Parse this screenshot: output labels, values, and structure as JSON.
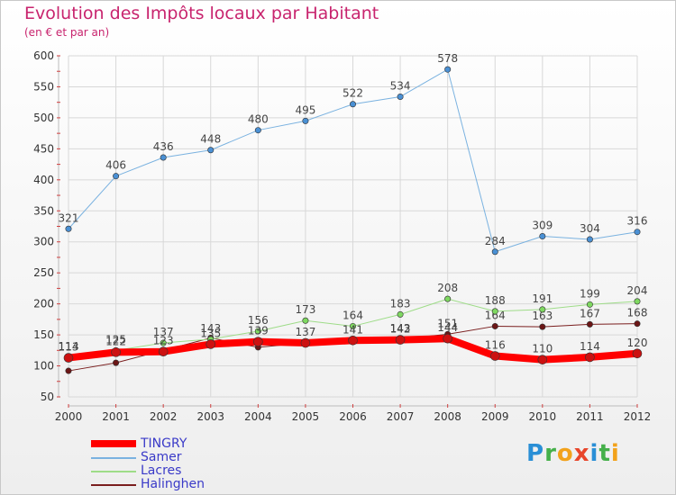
{
  "header": {
    "title": "Evolution des Impôts locaux par Habitant",
    "subtitle": "(en € et par an)"
  },
  "logo": {
    "letters": [
      "P",
      "r",
      "o",
      "x",
      "i",
      "t",
      "i"
    ]
  },
  "chart_data": {
    "type": "line",
    "title": "Evolution des Impôts locaux par Habitant",
    "subtitle": "(en € et par an)",
    "xlabel": "",
    "ylabel": "",
    "ylim": [
      50,
      600
    ],
    "yticks": [
      50,
      100,
      150,
      200,
      250,
      300,
      350,
      400,
      450,
      500,
      550,
      600
    ],
    "x": [
      "2000",
      "2001",
      "2002",
      "2003",
      "2004",
      "2005",
      "2006",
      "2007",
      "2008",
      "2009",
      "2010",
      "2011",
      "2012"
    ],
    "grid": true,
    "legend_position": "bottom-left",
    "series": [
      {
        "name": "Halinghen",
        "color": "#7a1e1e",
        "width": 1,
        "marker": "#6b1616",
        "values": [
          92,
          105,
          125,
          145,
          130,
          137,
          140,
          143,
          151,
          164,
          163,
          167,
          168
        ],
        "label_values": [
          null,
          null,
          null,
          null,
          null,
          null,
          null,
          143,
          151,
          164,
          163,
          167,
          168
        ]
      },
      {
        "name": "Lacres",
        "color": "#9edc88",
        "width": 1,
        "marker": "#7ed860",
        "values": [
          114,
          125,
          137,
          143,
          156,
          173,
          164,
          183,
          208,
          188,
          191,
          199,
          204
        ],
        "label_values": [
          114,
          125,
          137,
          143,
          156,
          173,
          164,
          183,
          208,
          188,
          191,
          199,
          204
        ]
      },
      {
        "name": "Samer",
        "color": "#7ab2e0",
        "width": 1,
        "marker": "#4a90d4",
        "values": [
          321,
          406,
          436,
          448,
          480,
          495,
          522,
          534,
          578,
          284,
          309,
          304,
          316
        ],
        "label_values": [
          321,
          406,
          436,
          448,
          480,
          495,
          522,
          534,
          578,
          284,
          309,
          304,
          316
        ]
      },
      {
        "name": "TINGRY",
        "color": "#ff0000",
        "width": 8,
        "marker": "#cc1111",
        "values": [
          113,
          122,
          123,
          135,
          139,
          137,
          141,
          142,
          144,
          116,
          110,
          114,
          120
        ],
        "label_values": [
          113,
          122,
          123,
          135,
          139,
          137,
          141,
          142,
          144,
          116,
          110,
          114,
          120
        ]
      }
    ],
    "legend_order": [
      "TINGRY",
      "Samer",
      "Lacres",
      "Halinghen"
    ]
  }
}
